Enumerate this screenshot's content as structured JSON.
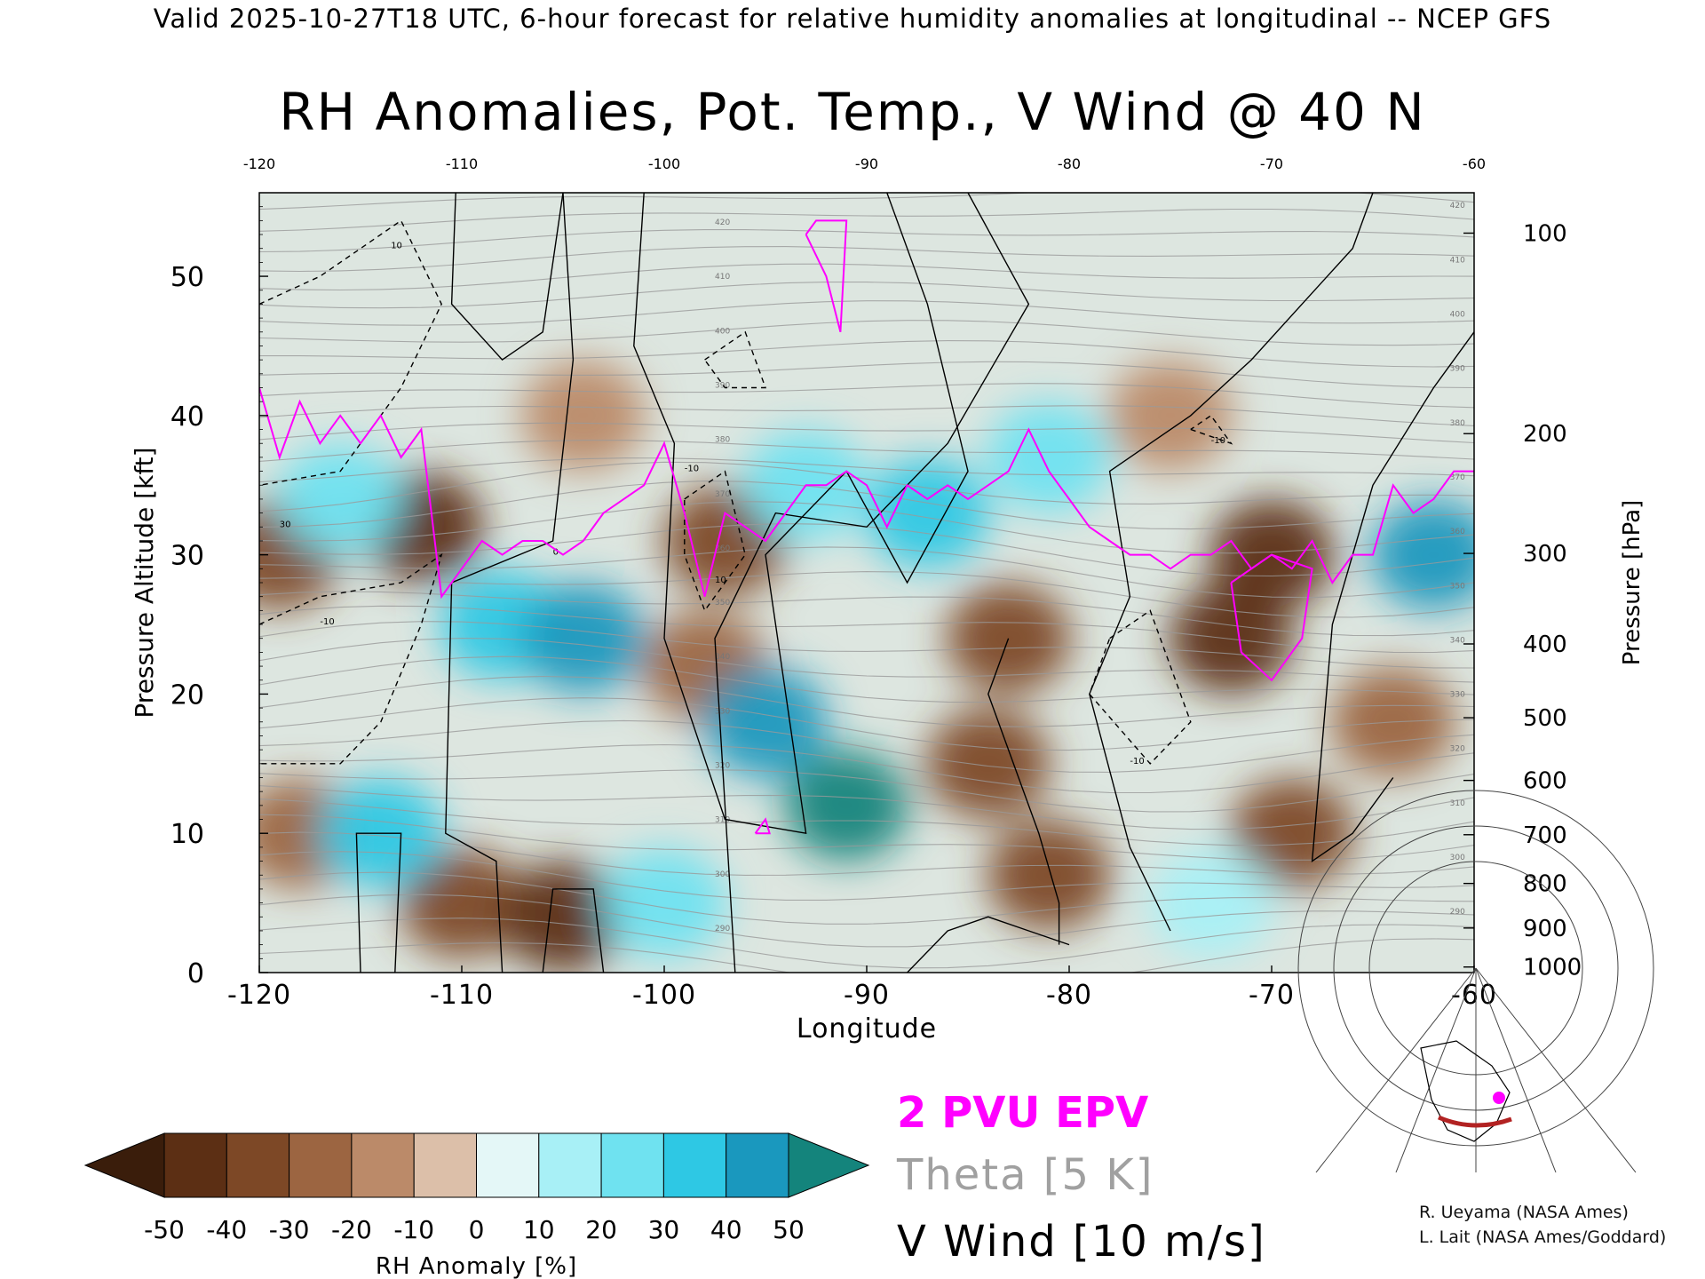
{
  "header": "Valid 2025-10-27T18 UTC, 6-hour forecast for relative humidity anomalies at longitudinal -- NCEP GFS",
  "chart_data": {
    "type": "heatmap",
    "title": "RH Anomalies, Pot. Temp., V Wind @ 40 N",
    "xlabel": "Longitude",
    "ylabel": "Pressure Altitude [kft]",
    "y2label": "Pressure [hPa]",
    "xlim": [
      -120,
      -60
    ],
    "ylim": [
      0,
      56
    ],
    "x_ticks": [
      "-120",
      "-110",
      "-100",
      "-90",
      "-80",
      "-70",
      "-60"
    ],
    "x_ticks_top": [
      "-120",
      "-110",
      "-100",
      "-90",
      "-80",
      "-70",
      "-60"
    ],
    "y_ticks": [
      "0",
      "10",
      "20",
      "30",
      "40",
      "50"
    ],
    "pressure_ticks": [
      {
        "label": "100",
        "kft": 53.1
      },
      {
        "label": "200",
        "kft": 38.7
      },
      {
        "label": "300",
        "kft": 30.1
      },
      {
        "label": "400",
        "kft": 23.6
      },
      {
        "label": "500",
        "kft": 18.3
      },
      {
        "label": "600",
        "kft": 13.8
      },
      {
        "label": "700",
        "kft": 9.9
      },
      {
        "label": "800",
        "kft": 6.4
      },
      {
        "label": "900",
        "kft": 3.2
      },
      {
        "label": "1000",
        "kft": 0.4
      }
    ],
    "colorbar": {
      "label": "RH Anomaly [%]",
      "ticks": [
        "-50",
        "-40",
        "-30",
        "-20",
        "-10",
        "0",
        "10",
        "20",
        "30",
        "40",
        "50"
      ],
      "colors": [
        "#3a1d0b",
        "#5c2f14",
        "#7d4826",
        "#9c6541",
        "#bb8a69",
        "#dcbfa9",
        "#e4f7f7",
        "#a8f0f6",
        "#6fe2f0",
        "#2ec8e4",
        "#1a98be",
        "#14847c"
      ]
    },
    "rh_anomaly_regions": [
      {
        "x": -112,
        "y": 32,
        "value": -45
      },
      {
        "x": -119,
        "y": 30,
        "value": -35
      },
      {
        "x": -118,
        "y": 10,
        "value": -30
      },
      {
        "x": -110,
        "y": 5,
        "value": -35
      },
      {
        "x": -105,
        "y": 4,
        "value": -45
      },
      {
        "x": -97,
        "y": 31,
        "value": -40
      },
      {
        "x": -98,
        "y": 22,
        "value": -25
      },
      {
        "x": -70,
        "y": 30,
        "value": -50
      },
      {
        "x": -72,
        "y": 24,
        "value": -45
      },
      {
        "x": -83,
        "y": 24,
        "value": -40
      },
      {
        "x": -81,
        "y": 7,
        "value": -40
      },
      {
        "x": -69,
        "y": 10,
        "value": -40
      },
      {
        "x": -84,
        "y": 15,
        "value": -35
      },
      {
        "x": -64,
        "y": 18,
        "value": -30
      },
      {
        "x": -104,
        "y": 40,
        "value": -20
      },
      {
        "x": -75,
        "y": 40,
        "value": -15
      },
      {
        "x": -108,
        "y": 25,
        "value": 35
      },
      {
        "x": -104,
        "y": 24,
        "value": 40
      },
      {
        "x": -95,
        "y": 18,
        "value": 40
      },
      {
        "x": -91,
        "y": 12,
        "value": 50
      },
      {
        "x": -114,
        "y": 10,
        "value": 30
      },
      {
        "x": -116,
        "y": 34,
        "value": 25
      },
      {
        "x": -87,
        "y": 33,
        "value": 30
      },
      {
        "x": -81,
        "y": 37,
        "value": 20
      },
      {
        "x": -62,
        "y": 30,
        "value": 45
      },
      {
        "x": -100,
        "y": 5,
        "value": 20
      },
      {
        "x": -73,
        "y": 5,
        "value": 15
      },
      {
        "x": -93,
        "y": 35,
        "value": 20
      }
    ],
    "theta_levels": [
      "290",
      "300",
      "310",
      "320",
      "330",
      "340",
      "350",
      "360",
      "370",
      "380",
      "390",
      "400",
      "410",
      "420"
    ],
    "series": [
      {
        "name": "2 PVU EPV",
        "color": "#ff00ff",
        "x": [
          -120,
          -119,
          -118,
          -117,
          -116,
          -115,
          -114,
          -113,
          -112,
          -111,
          -110,
          -109,
          -108,
          -107,
          -106,
          -105,
          -104,
          -103,
          -102,
          -101,
          -100,
          -99,
          -98,
          -97,
          -96,
          -95,
          -94,
          -93,
          -92,
          -91,
          -90,
          -89,
          -88,
          -87,
          -86,
          -85,
          -84,
          -83,
          -82,
          -81,
          -80,
          -79,
          -78,
          -77,
          -76,
          -75,
          -74,
          -73,
          -72,
          -71,
          -70,
          -69,
          -68,
          -67,
          -66,
          -65,
          -64,
          -63,
          -62,
          -61,
          -60
        ],
        "y": [
          42,
          37,
          41,
          38,
          40,
          38,
          40,
          37,
          39,
          27,
          29,
          31,
          30,
          31,
          31,
          30,
          31,
          33,
          34,
          35,
          38,
          33,
          27,
          33,
          32,
          31,
          33,
          35,
          35,
          36,
          35,
          32,
          35,
          34,
          35,
          34,
          35,
          36,
          39,
          36,
          34,
          32,
          31,
          30,
          30,
          29,
          30,
          30,
          31,
          29,
          30,
          29,
          31,
          28,
          30,
          30,
          35,
          33,
          34,
          36,
          36
        ]
      }
    ],
    "vwind_labels": [
      "0",
      "10",
      "-10",
      "30"
    ]
  },
  "legend": {
    "epv": "2 PVU EPV",
    "theta": "Theta [5 K]",
    "wind": "V Wind [10 m/s]"
  },
  "credits": [
    "R. Ueyama (NASA Ames)",
    "L. Lait (NASA Ames/Goddard)"
  ],
  "colors": {
    "epv": "#ff00ff",
    "theta": "#a0a0a0",
    "wind": "#000000",
    "track": "#b22222",
    "point": "#ff00ff"
  }
}
